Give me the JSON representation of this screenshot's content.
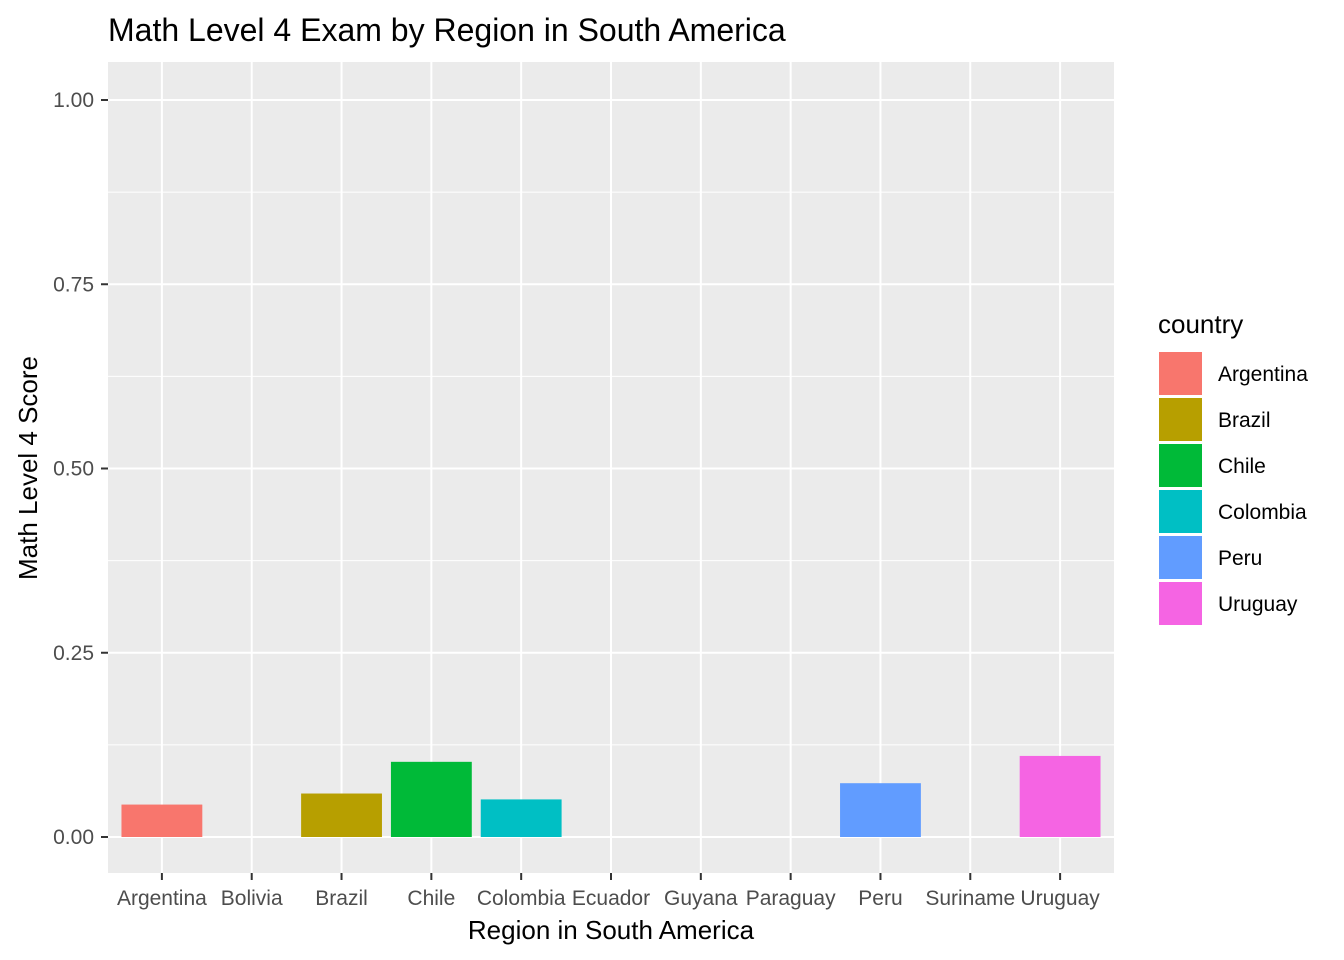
{
  "chart_data": {
    "type": "bar",
    "title": "Math Level 4 Exam by Region in South America",
    "xlabel": "Region in South America",
    "ylabel": "Math Level 4 Score",
    "categories": [
      "Argentina",
      "Bolivia",
      "Brazil",
      "Chile",
      "Colombia",
      "Ecuador",
      "Guyana",
      "Paraguay",
      "Peru",
      "Suriname",
      "Uruguay"
    ],
    "values": [
      0.044,
      null,
      0.059,
      0.102,
      0.051,
      null,
      null,
      null,
      0.073,
      null,
      0.11
    ],
    "ylim": [
      0,
      1
    ],
    "yticks": [
      "0.00",
      "0.25",
      "0.50",
      "0.75",
      "1.00"
    ],
    "grid": true,
    "legend_position": "right",
    "legend": {
      "title": "country",
      "items": [
        {
          "label": "Argentina",
          "color": "#F8766D"
        },
        {
          "label": "Brazil",
          "color": "#B79F00"
        },
        {
          "label": "Chile",
          "color": "#00BA38"
        },
        {
          "label": "Colombia",
          "color": "#00BFC4"
        },
        {
          "label": "Peru",
          "color": "#619CFF"
        },
        {
          "label": "Uruguay",
          "color": "#F564E3"
        }
      ]
    },
    "panel_background": "#EBEBEB",
    "grid_color": "#FFFFFF",
    "tick_color": "#333333"
  }
}
